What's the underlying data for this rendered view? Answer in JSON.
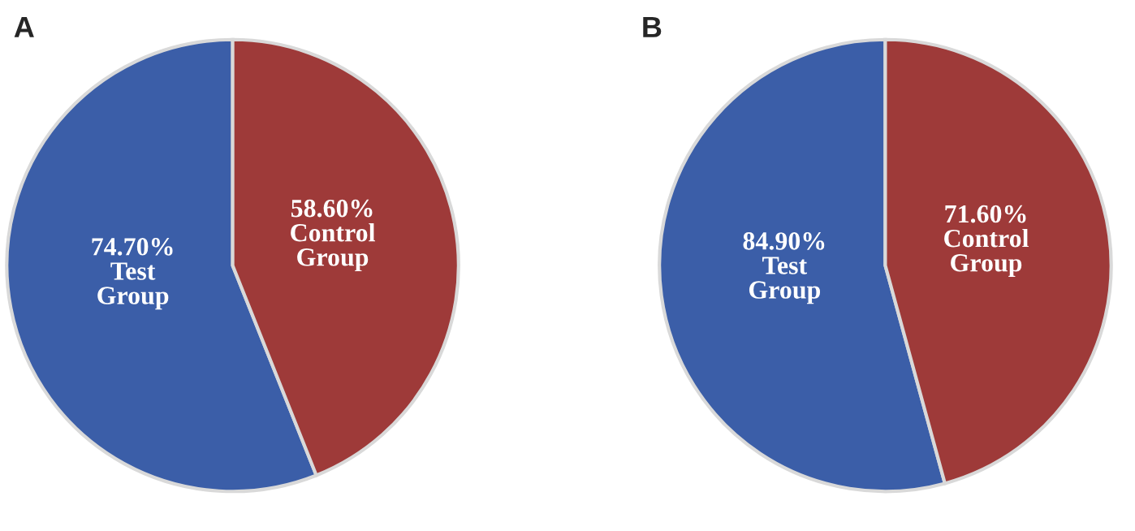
{
  "chart_data": [
    {
      "type": "pie",
      "title": "A",
      "categories": [
        "Test Group",
        "Control Group"
      ],
      "values": [
        74.7,
        58.6
      ],
      "value_labels": [
        "74.70%",
        "58.60%"
      ],
      "colors": [
        "#3b5ea8",
        "#9e3a39"
      ]
    },
    {
      "type": "pie",
      "title": "B",
      "categories": [
        "Test Group",
        "Control Group"
      ],
      "values": [
        84.9,
        71.6
      ],
      "value_labels": [
        "84.90%",
        "71.60%"
      ],
      "colors": [
        "#3b5ea8",
        "#9e3a39"
      ]
    }
  ]
}
